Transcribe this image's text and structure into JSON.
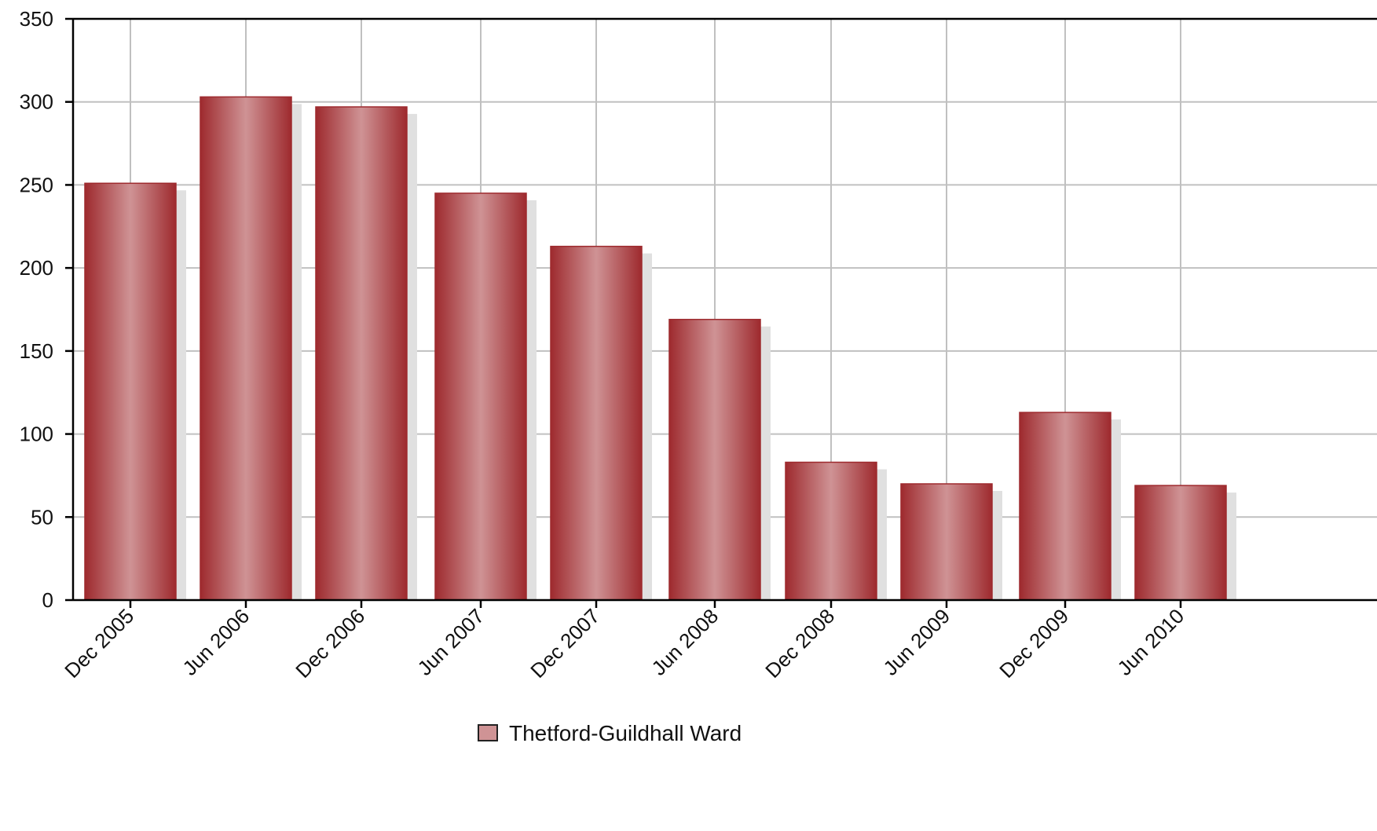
{
  "chart_data": {
    "type": "bar",
    "title": "",
    "xlabel": "",
    "ylabel": "",
    "categories": [
      "Dec 2005",
      "Jun 2006",
      "Dec 2006",
      "Jun 2007",
      "Dec 2007",
      "Jun 2008",
      "Dec 2008",
      "Jun 2009",
      "Dec 2009",
      "Jun 2010"
    ],
    "series": [
      {
        "name": "Thetford-Guildhall Ward",
        "values": [
          251,
          303,
          297,
          245,
          213,
          169,
          83,
          70,
          113,
          69
        ]
      }
    ],
    "ylim": [
      0,
      350
    ],
    "yticks": [
      0,
      50,
      100,
      150,
      200,
      250,
      300,
      350
    ],
    "grid": true,
    "legend_position": "bottom-center",
    "colors": {
      "bar_edge": "#9e2a2e",
      "bar_highlight": "#cf9395",
      "shadow": "#e0e0e0",
      "grid": "#c0c0c0",
      "axis": "#000000"
    }
  }
}
